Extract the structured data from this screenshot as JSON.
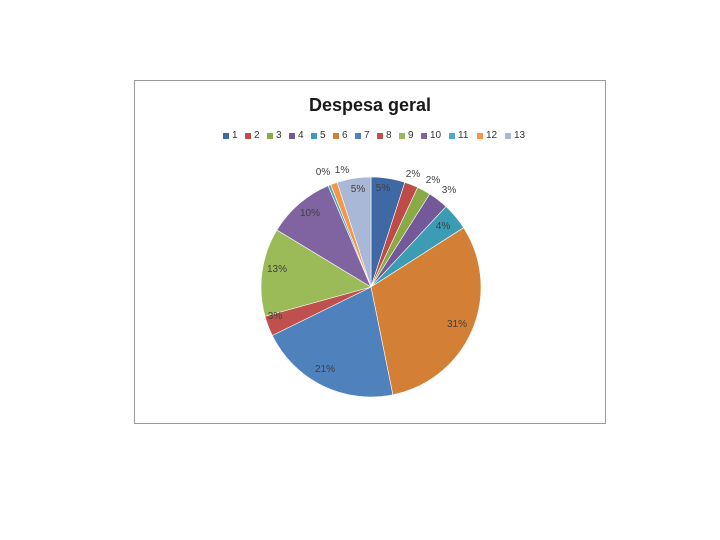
{
  "chart_data": {
    "type": "pie",
    "title": "Despesa geral",
    "legend_position": "top",
    "categories": [
      "1",
      "2",
      "3",
      "4",
      "5",
      "6",
      "7",
      "8",
      "9",
      "10",
      "11",
      "12",
      "13"
    ],
    "values": [
      5,
      2,
      2,
      3,
      4,
      31,
      21,
      3,
      13,
      10,
      0,
      1,
      5
    ],
    "labels": [
      "5%",
      "2%",
      "2%",
      "3%",
      "4%",
      "31%",
      "21%",
      "3%",
      "13%",
      "10%",
      "0%",
      "1%",
      "5%"
    ],
    "colors": [
      "#3e69a5",
      "#bf4b48",
      "#8aaa46",
      "#73589a",
      "#3b9cb4",
      "#d37f35",
      "#4f81bd",
      "#c0504d",
      "#9bbb59",
      "#8064a2",
      "#4bacc6",
      "#f79646",
      "#aab8d7"
    ]
  }
}
